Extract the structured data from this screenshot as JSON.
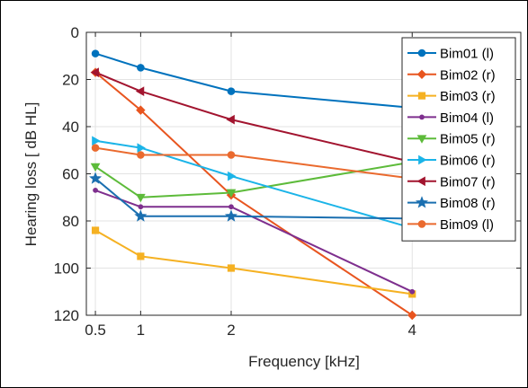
{
  "chart_data": {
    "type": "line",
    "title": "",
    "xlabel": "Frequency [kHz]",
    "ylabel": "Hearing loss [ dB HL]",
    "x": [
      0.5,
      1,
      2,
      4
    ],
    "xticks": [
      0.5,
      1,
      2,
      4
    ],
    "xtick_labels": [
      "0.5",
      "1",
      "2",
      "4"
    ],
    "xlim": [
      0.4,
      5.2
    ],
    "ylim": [
      0,
      120
    ],
    "y_reversed": true,
    "yticks": [
      0,
      20,
      40,
      60,
      80,
      100,
      120
    ],
    "ytick_labels": [
      "0",
      "20",
      "40",
      "60",
      "80",
      "100",
      "120"
    ],
    "grid": true,
    "legend_position": "top-right",
    "series": [
      {
        "name": "Bim01 (l)",
        "color": "#0072BD",
        "marker": "circle",
        "values": [
          9,
          15,
          25,
          32
        ]
      },
      {
        "name": "Bim02 (r)",
        "color": "#E8551F",
        "marker": "diamond",
        "values": [
          17,
          33,
          69,
          120
        ]
      },
      {
        "name": "Bim03 (r)",
        "color": "#F5B122",
        "marker": "square",
        "values": [
          84,
          95,
          100,
          111
        ]
      },
      {
        "name": "Bim04 (l)",
        "color": "#7E2F8E",
        "marker": "dot",
        "values": [
          67,
          74,
          74,
          110
        ]
      },
      {
        "name": "Bim05 (r)",
        "color": "#5DBB3A",
        "marker": "triangle-down",
        "values": [
          57,
          70,
          68,
          55
        ]
      },
      {
        "name": "Bim06 (r)",
        "color": "#1BB4E8",
        "marker": "triangle-right",
        "values": [
          46,
          49,
          61,
          83
        ]
      },
      {
        "name": "Bim07 (r)",
        "color": "#A2142F",
        "marker": "triangle-left",
        "values": [
          17,
          25,
          37,
          55
        ]
      },
      {
        "name": "Bim08 (r)",
        "color": "#1A6FB0",
        "marker": "star",
        "values": [
          62,
          78,
          78,
          79
        ]
      },
      {
        "name": "Bim09 (l)",
        "color": "#EA6A2E",
        "marker": "circle",
        "values": [
          49,
          52,
          52,
          62
        ]
      }
    ]
  }
}
